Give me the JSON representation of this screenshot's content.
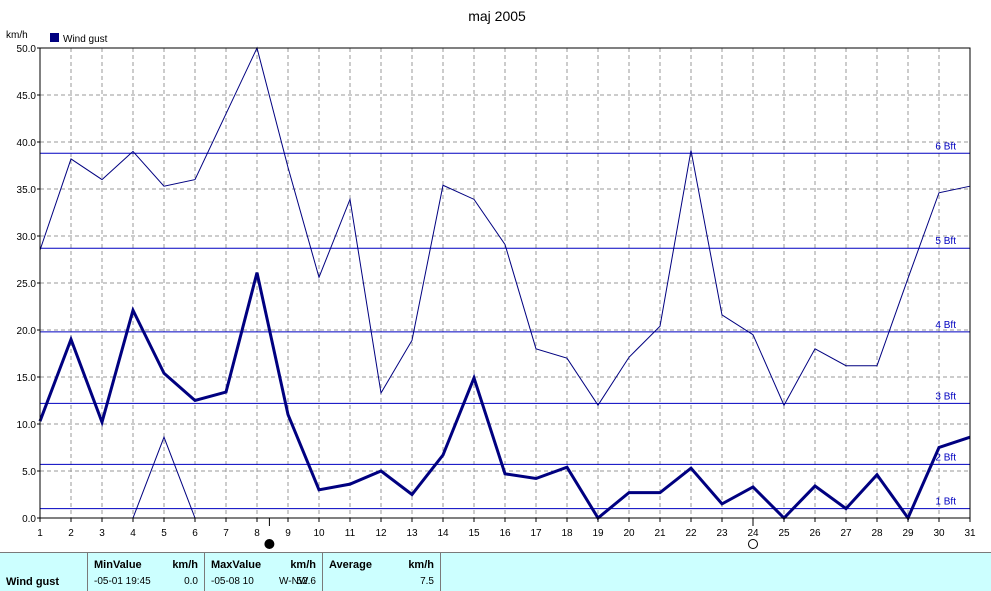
{
  "chart_data": {
    "type": "line",
    "title": "maj 2005",
    "unit_label": "km/h",
    "legend": [
      {
        "label": "Wind gust",
        "color": "#000080"
      }
    ],
    "x": [
      1,
      2,
      3,
      4,
      5,
      6,
      7,
      8,
      9,
      10,
      11,
      12,
      13,
      14,
      15,
      16,
      17,
      18,
      19,
      20,
      21,
      22,
      23,
      24,
      25,
      26,
      27,
      28,
      29,
      30,
      31
    ],
    "x_ticks": [
      "1",
      "2",
      "3",
      "4",
      "5",
      "6",
      "7",
      "8",
      "9",
      "10",
      "11",
      "12",
      "13",
      "14",
      "15",
      "16",
      "17",
      "18",
      "19",
      "20",
      "21",
      "22",
      "23",
      "24",
      "25",
      "26",
      "27",
      "28",
      "29",
      "30",
      "31"
    ],
    "xlim": [
      1,
      31
    ],
    "ylim": [
      0,
      50
    ],
    "y_ticks": [
      "0.0",
      "5.0",
      "10.0",
      "15.0",
      "20.0",
      "25.0",
      "30.0",
      "35.0",
      "40.0",
      "45.0",
      "50.0"
    ],
    "grid": true,
    "series": [
      {
        "role": "max",
        "color": "#000080",
        "values": [
          28.5,
          38.2,
          36.0,
          39.0,
          35.3,
          36.0,
          43.0,
          52.6,
          37.3,
          25.6,
          33.9,
          13.3,
          18.9,
          35.4,
          33.9,
          29.1,
          18.0,
          17.0,
          12.0,
          17.1,
          20.4,
          39.1,
          21.6,
          19.5,
          12.0,
          18.0,
          16.2,
          16.2,
          25.5,
          34.6,
          35.3
        ]
      },
      {
        "role": "average",
        "color": "#000080",
        "values": [
          10.3,
          19.0,
          10.2,
          22.1,
          15.4,
          12.5,
          13.4,
          26.1,
          11.0,
          3.0,
          3.6,
          5.0,
          2.5,
          6.7,
          14.9,
          4.7,
          4.2,
          5.4,
          0.0,
          2.7,
          2.7,
          5.3,
          1.5,
          3.3,
          0.0,
          3.4,
          1.0,
          4.6,
          0.0,
          7.5,
          8.6
        ]
      },
      {
        "role": "min",
        "color": "#000080",
        "values": [
          null,
          null,
          null,
          0.0,
          8.6,
          0.0,
          null,
          null,
          null,
          null,
          null,
          null,
          null,
          null,
          null,
          null,
          null,
          null,
          null,
          null,
          null,
          null,
          null,
          null,
          null,
          null,
          null,
          null,
          null,
          null,
          null
        ]
      }
    ],
    "beaufort_lines": [
      {
        "label": "1 Bft",
        "value": 1.0
      },
      {
        "label": "2 Bft",
        "value": 5.7
      },
      {
        "label": "3 Bft",
        "value": 12.2
      },
      {
        "label": "4 Bft",
        "value": 19.8
      },
      {
        "label": "5 Bft",
        "value": 28.7
      },
      {
        "label": "6 Bft",
        "value": 38.8
      }
    ],
    "markers": [
      {
        "x": 8.4,
        "kind": "filled-circle"
      },
      {
        "x": 24.0,
        "kind": "open-circle"
      }
    ]
  },
  "stats": {
    "row_label": "Wind gust",
    "min_header": "MinValue",
    "min_unit": "km/h",
    "min_time": "-05-01  19:45",
    "min_value": "0.0",
    "max_header": "MaxValue",
    "max_unit": "km/h",
    "max_time": "-05-08  10",
    "max_dir": "W-NW",
    "max_value": "52.6",
    "avg_header": "Average",
    "avg_unit": "km/h",
    "avg_value": "7.5"
  }
}
